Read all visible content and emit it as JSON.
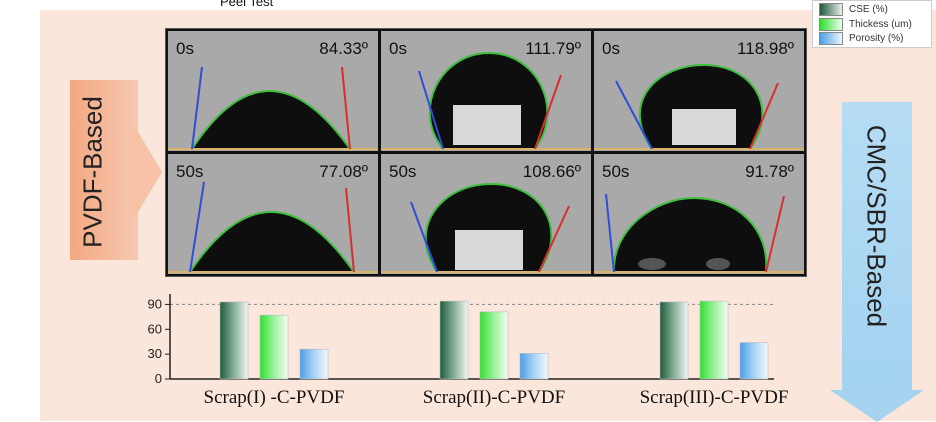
{
  "figure": {
    "top_title": "Peel Test",
    "left_label": "PVDF-Based",
    "right_label": "CMC/SBR-Based"
  },
  "legend": {
    "items": [
      {
        "label": "CSE (%)",
        "color": "#2f6f4f"
      },
      {
        "label": "Thickess (um)",
        "color": "#3ee63e"
      },
      {
        "label": "Porosity (%)",
        "color": "#5aa8f0"
      }
    ]
  },
  "contact_angles": [
    {
      "time": "0s",
      "angle": "84.33º"
    },
    {
      "time": "0s",
      "angle": "111.79º"
    },
    {
      "time": "0s",
      "angle": "118.98º"
    },
    {
      "time": "50s",
      "angle": "77.08º"
    },
    {
      "time": "50s",
      "angle": "108.66º"
    },
    {
      "time": "50s",
      "angle": "91.78º"
    }
  ],
  "chart_data": {
    "type": "bar",
    "categories": [
      "Scrap(I) -C-PVDF",
      "Scrap(II)-C-PVDF",
      "Scrap(III)-C-PVDF"
    ],
    "series": [
      {
        "name": "CSE (%)",
        "values": [
          93,
          94,
          93
        ]
      },
      {
        "name": "Thickess (um)",
        "values": [
          77,
          81,
          94
        ]
      },
      {
        "name": "Porosity (%)",
        "values": [
          36,
          31,
          44
        ]
      }
    ],
    "yticks": [
      "0",
      "30",
      "60",
      "90"
    ],
    "ylim": [
      0,
      105
    ],
    "reference_line": 90,
    "grid": false,
    "colors": [
      "#2f6f4f",
      "#3ee63e",
      "#5aa8f0"
    ]
  }
}
